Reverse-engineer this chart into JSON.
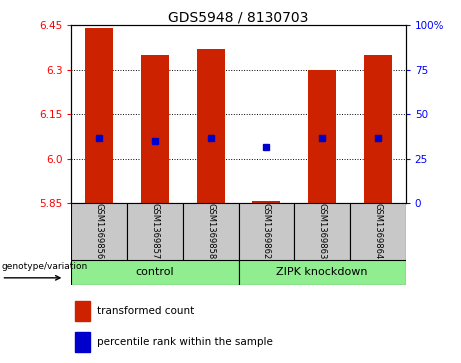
{
  "title": "GDS5948 / 8130703",
  "samples": [
    "GSM1369856",
    "GSM1369857",
    "GSM1369858",
    "GSM1369862",
    "GSM1369863",
    "GSM1369864"
  ],
  "bar_bottom": 5.85,
  "bar_tops": [
    6.44,
    6.35,
    6.37,
    5.858,
    6.3,
    6.35
  ],
  "percentile_values": [
    6.07,
    6.06,
    6.07,
    6.04,
    6.07,
    6.07
  ],
  "ylim_left": [
    5.85,
    6.45
  ],
  "ylim_right": [
    0,
    100
  ],
  "yticks_left": [
    5.85,
    6.0,
    6.15,
    6.3,
    6.45
  ],
  "yticks_right": [
    0,
    25,
    50,
    75,
    100
  ],
  "ytick_labels_right": [
    "0",
    "25",
    "50",
    "75",
    "100%"
  ],
  "groups": [
    {
      "label": "control",
      "span": [
        0,
        3
      ]
    },
    {
      "label": "ZIPK knockdown",
      "span": [
        3,
        6
      ]
    }
  ],
  "group_color": "#90EE90",
  "bar_color": "#CC2200",
  "percentile_color": "#0000CC",
  "group_label_text": "genotype/variation",
  "legend_items": [
    {
      "color": "#CC2200",
      "label": "transformed count"
    },
    {
      "color": "#0000CC",
      "label": "percentile rank within the sample"
    }
  ],
  "sample_box_color": "#C8C8C8",
  "bar_width": 0.5,
  "grid_dotted_at": [
    6.0,
    6.15,
    6.3
  ]
}
